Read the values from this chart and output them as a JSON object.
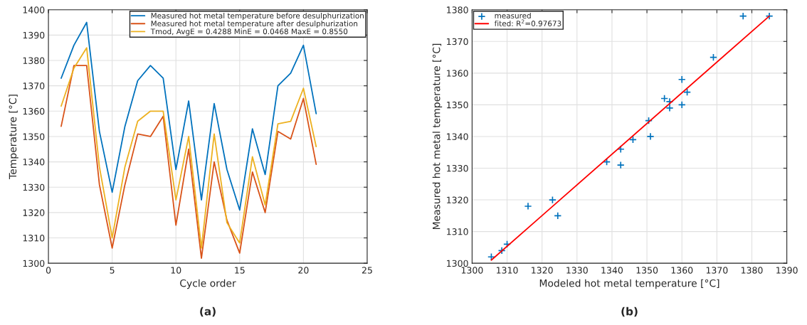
{
  "chart_data": [
    {
      "type": "line",
      "xlabel": "Cycle order",
      "ylabel": "Temperature [°C]",
      "x": [
        1,
        2,
        3,
        4,
        5,
        6,
        7,
        8,
        9,
        10,
        11,
        12,
        13,
        14,
        15,
        16,
        17,
        18,
        19,
        20,
        21
      ],
      "series": [
        {
          "name": "Measured hot metal temperature before desulphurization",
          "color": "#0072bd",
          "values": [
            1373,
            1386,
            1395,
            1352,
            1328,
            1354,
            1372,
            1378,
            1373,
            1337,
            1364,
            1325,
            1363,
            1337,
            1321,
            1353,
            1335,
            1370,
            1375,
            1386,
            1359
          ]
        },
        {
          "name": "Measured hot metal temperature after desulphurization",
          "color": "#d95319",
          "values": [
            1354,
            1378,
            1378,
            1331,
            1306,
            1331,
            1351,
            1350,
            1358,
            1315,
            1345,
            1302,
            1340,
            1317,
            1304,
            1336,
            1320,
            1352,
            1349,
            1365,
            1339
          ]
        },
        {
          "name": "Tmod, AvgE = 0.4288 MinE = 0.0468 MaxE = 0.8550",
          "color": "#edb120",
          "values": [
            1362,
            1377,
            1385,
            1338,
            1310,
            1338,
            1356,
            1360,
            1360,
            1325,
            1350,
            1306,
            1351,
            1316,
            1308,
            1342,
            1323,
            1355,
            1356,
            1369,
            1346
          ]
        }
      ],
      "xlim": [
        0,
        25
      ],
      "xticks": [
        0,
        5,
        10,
        15,
        20,
        25
      ],
      "ylim": [
        1300,
        1400
      ],
      "yticks": [
        1300,
        1310,
        1320,
        1330,
        1340,
        1350,
        1360,
        1370,
        1380,
        1390,
        1400
      ],
      "grid": true,
      "legend": "top right",
      "annotations": [
        "(a)"
      ]
    },
    {
      "type": "scatter",
      "xlabel": "Modeled hot metal temperature [°C]",
      "ylabel": "Measured hot metal temperature [°C]",
      "series": [
        {
          "name": "measured",
          "type": "scatter",
          "marker": "cross",
          "color": "#0072bd",
          "x": [
            1305.5,
            1308.5,
            1310,
            1316,
            1323,
            1324.5,
            1338.5,
            1342.5,
            1342.5,
            1346,
            1350.5,
            1351,
            1355,
            1356.5,
            1356.5,
            1360,
            1360,
            1361.5,
            1369,
            1377.5,
            1385
          ],
          "values": [
            1302,
            1304,
            1306,
            1318,
            1320,
            1315,
            1332,
            1336,
            1331,
            1339,
            1345,
            1340,
            1352,
            1351,
            1349,
            1358,
            1350,
            1354,
            1365,
            1378,
            1378
          ]
        },
        {
          "name": "fited: R$^{2}$=0.97673",
          "type": "line",
          "color": "#ff0000",
          "x": [
            1305.5,
            1385
          ],
          "values": [
            1301,
            1378
          ]
        }
      ],
      "xlim": [
        1300,
        1390
      ],
      "xticks": [
        1300,
        1310,
        1320,
        1330,
        1340,
        1350,
        1360,
        1370,
        1380,
        1390
      ],
      "ylim": [
        1300,
        1380
      ],
      "yticks": [
        1300,
        1310,
        1320,
        1330,
        1340,
        1350,
        1360,
        1370,
        1380
      ],
      "grid": true,
      "legend": "top left",
      "annotations": [
        "(b)"
      ]
    }
  ]
}
